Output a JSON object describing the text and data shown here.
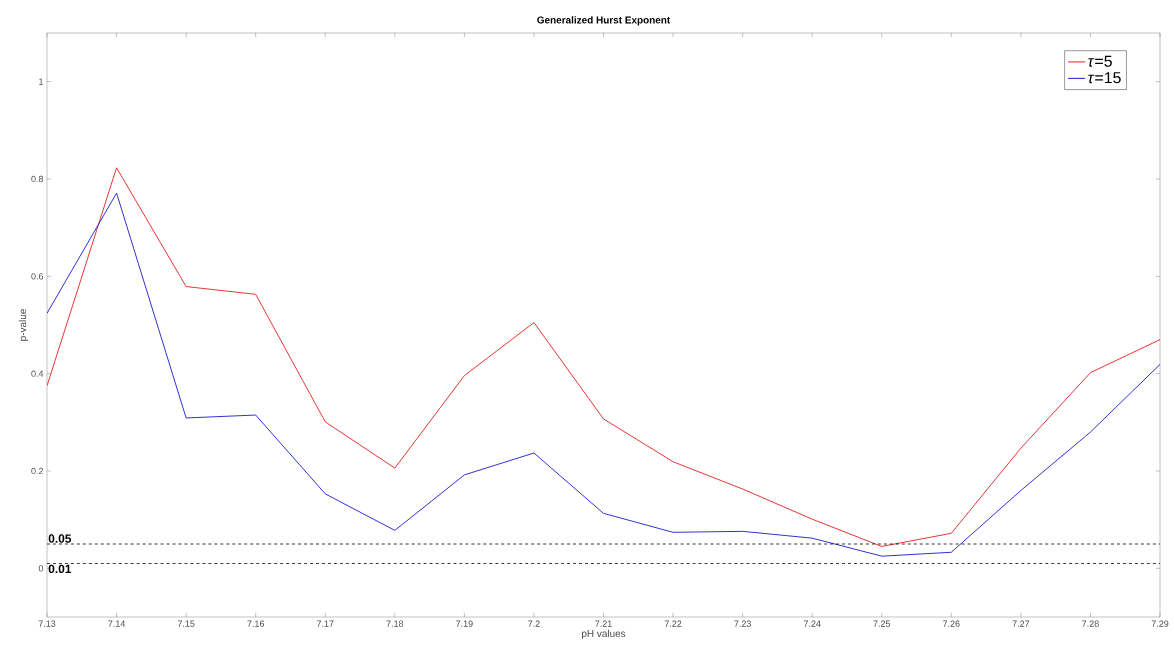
{
  "chart_data": {
    "type": "line",
    "title": "Generalized Hurst Exponent",
    "xlabel": "pH values",
    "ylabel": "p-value",
    "x": [
      7.13,
      7.14,
      7.15,
      7.16,
      7.17,
      7.18,
      7.19,
      7.2,
      7.21,
      7.22,
      7.23,
      7.24,
      7.25,
      7.26,
      7.27,
      7.28,
      7.29
    ],
    "series": [
      {
        "name": "*τ*=5",
        "color": "#e0201b",
        "values": [
          0.375,
          0.823,
          0.579,
          0.563,
          0.301,
          0.206,
          0.396,
          0.505,
          0.307,
          0.219,
          0.163,
          0.101,
          0.045,
          0.072,
          0.247,
          0.402,
          0.47
        ]
      },
      {
        "name": "*τ*=15",
        "color": "#1a1ad0",
        "values": [
          0.524,
          0.771,
          0.309,
          0.315,
          0.153,
          0.078,
          0.192,
          0.237,
          0.113,
          0.074,
          0.076,
          0.062,
          0.025,
          0.033,
          0.16,
          0.28,
          0.419
        ]
      }
    ],
    "xlim": [
      7.13,
      7.29
    ],
    "ylim": [
      -0.1,
      1.1
    ],
    "xticks": [
      7.13,
      7.14,
      7.15,
      7.16,
      7.17,
      7.18,
      7.19,
      7.2,
      7.21,
      7.22,
      7.23,
      7.24,
      7.25,
      7.26,
      7.27,
      7.28,
      7.29
    ],
    "yticks": [
      0,
      0.2,
      0.4,
      0.6,
      0.8,
      1
    ],
    "ref_lines": [
      {
        "axis": "y",
        "value": 0.05,
        "label": "0.05",
        "color": "#000000",
        "line_style": "dashed"
      },
      {
        "axis": "y",
        "value": 0.01,
        "label": "0.01",
        "color": "#000000",
        "line_style": "dashed"
      }
    ],
    "legend": "top right",
    "grid": false,
    "marker": "none",
    "line_style": "solid"
  }
}
